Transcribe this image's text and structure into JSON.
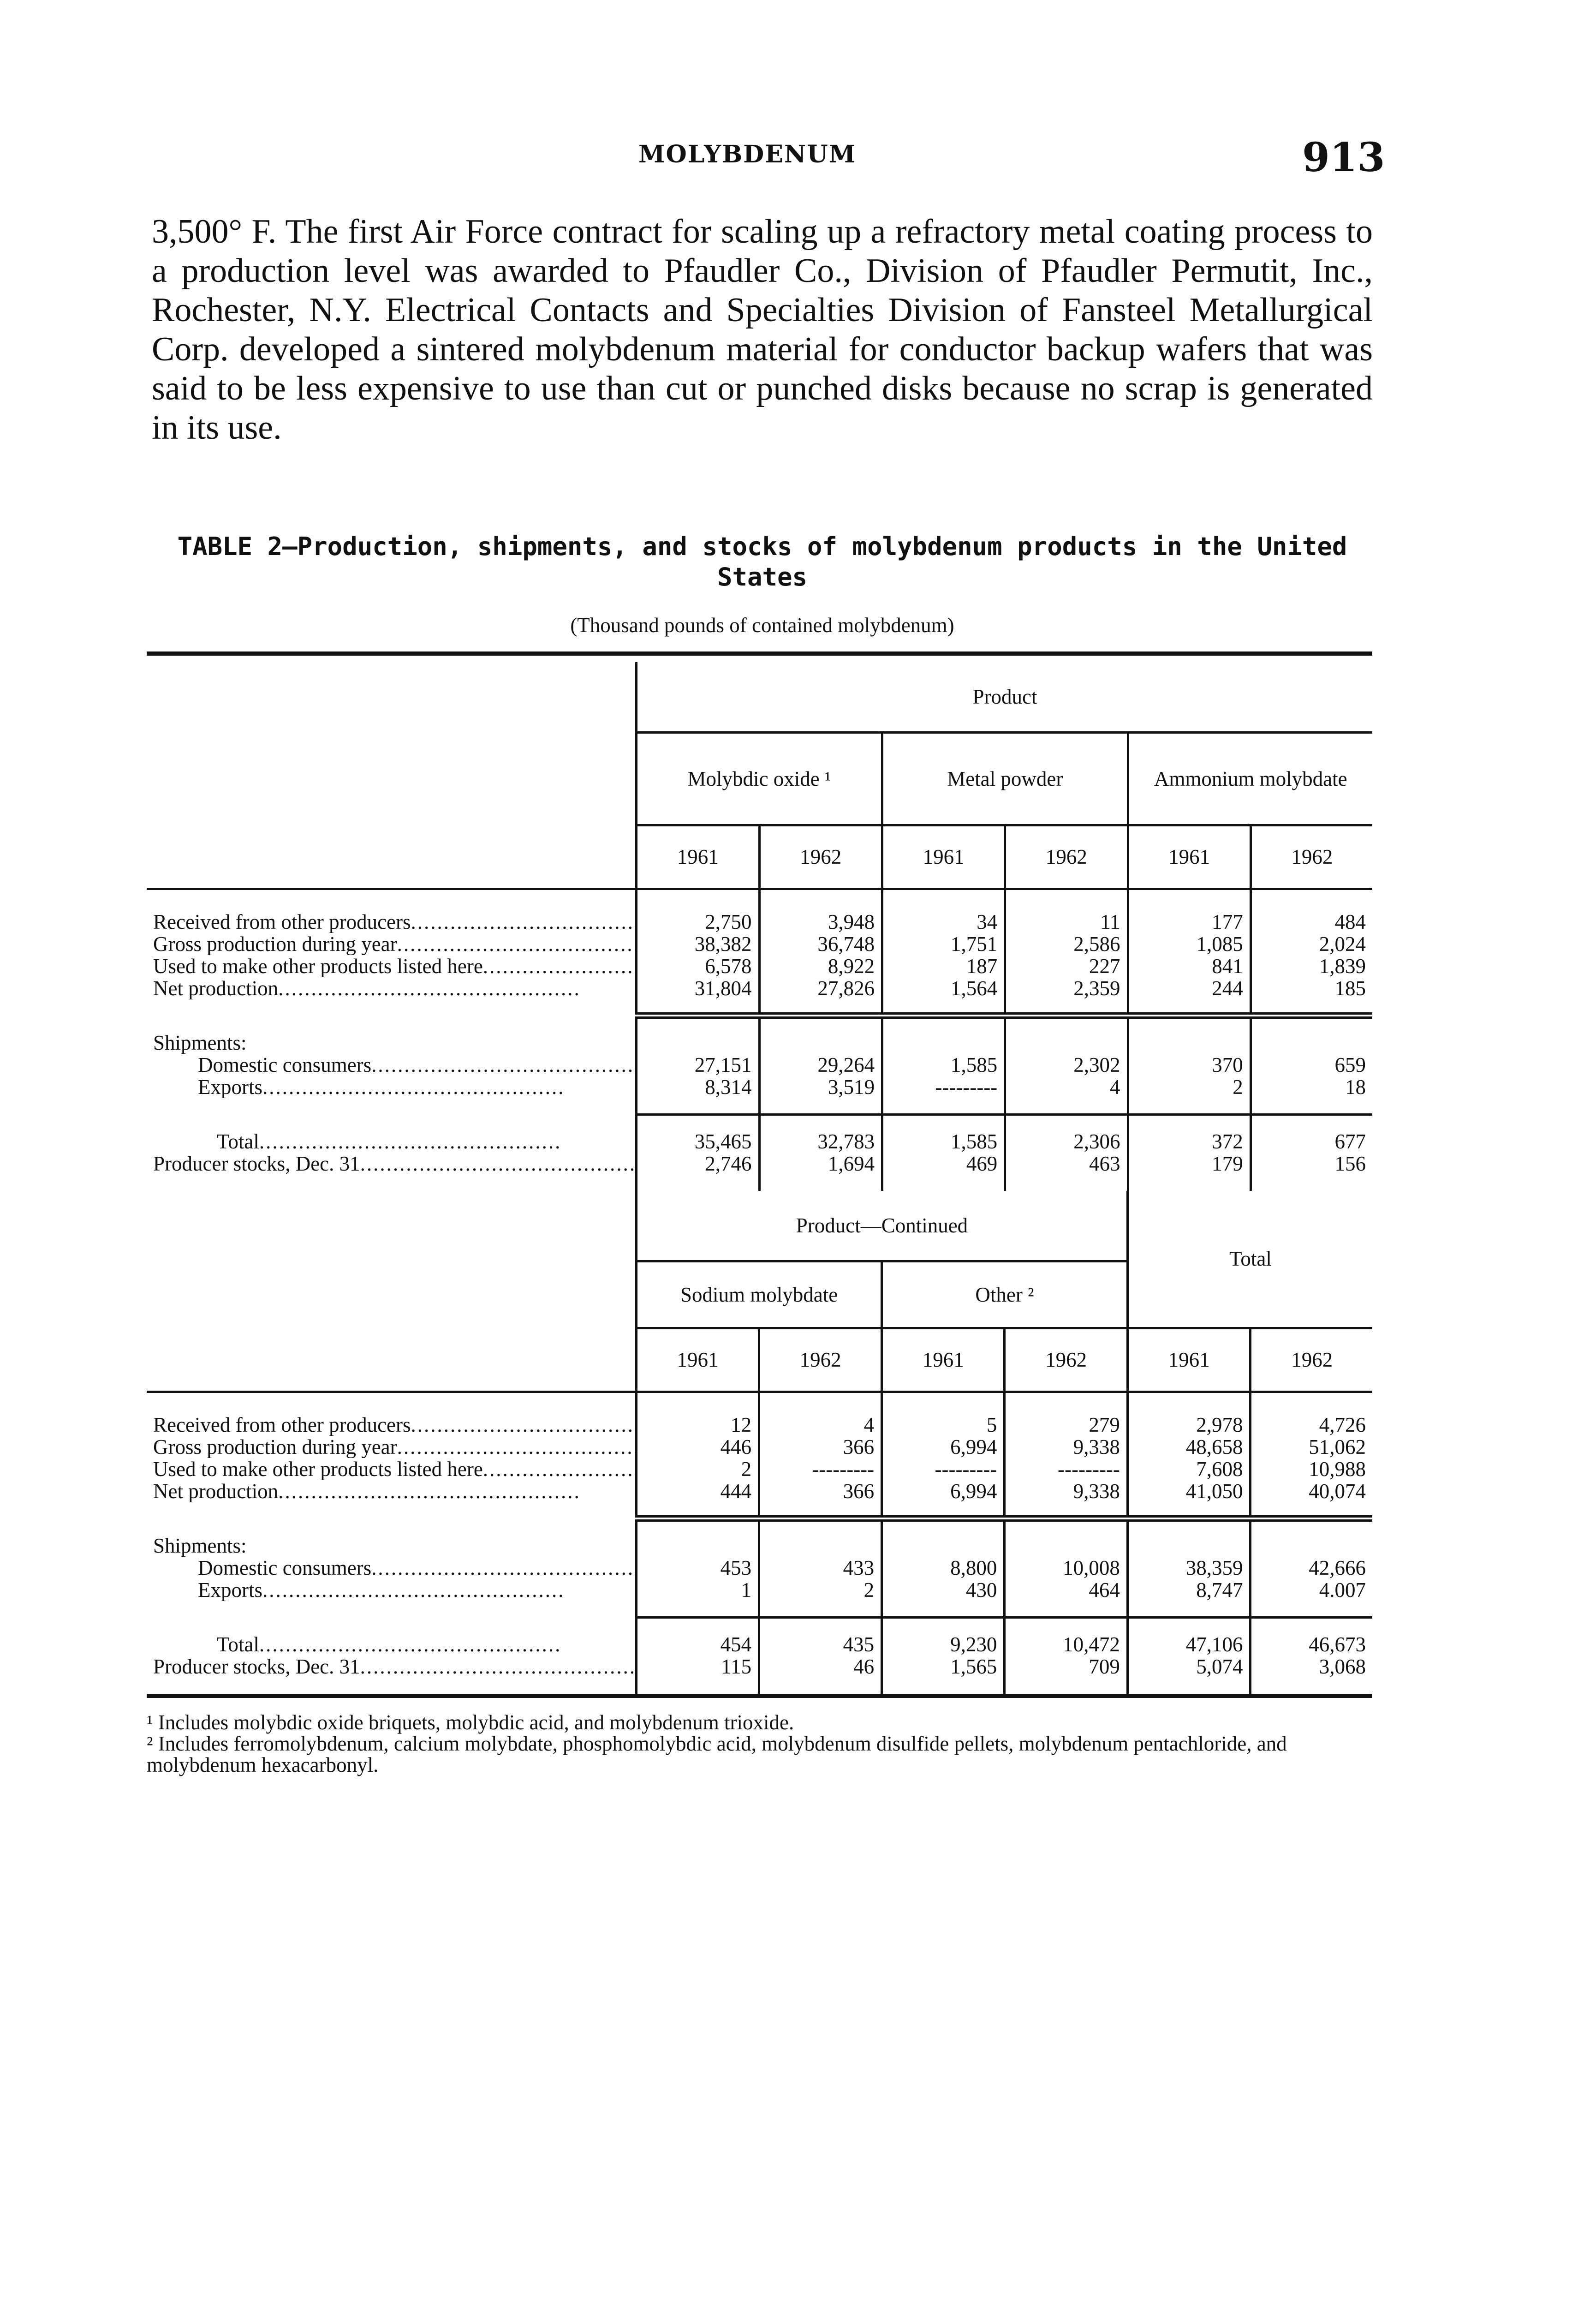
{
  "header": {
    "running_head": "MOLYBDENUM",
    "page_number": "913"
  },
  "paragraph": "3,500° F. The first Air Force contract for scaling up a refractory metal coating process to a production level was awarded to Pfaudler Co., Division of Pfaudler Permutit, Inc., Rochester, N.Y. Electrical Contacts and Specialties Division of Fansteel Metallurgical Corp. developed a sintered molybdenum material for conductor backup wafers that was said to be less expensive to use than cut or punched disks because no scrap is generated in its use.",
  "table": {
    "title": "TABLE 2—Production, shipments, and stocks of molybdenum products in the United States",
    "subtitle": "(Thousand pounds of contained molybdenum)",
    "rows": [
      "Received from other producers",
      "Gross production during year",
      "Used to make other products listed here",
      "Net production",
      "Shipments:",
      "Domestic consumers",
      "Exports",
      "Total",
      "Producer stocks, Dec. 31"
    ],
    "part1": {
      "group": "Product",
      "products": [
        "Molybdic oxide ¹",
        "Metal powder",
        "Ammonium molybdate"
      ],
      "years": [
        "1961",
        "1962",
        "1961",
        "1962",
        "1961",
        "1962"
      ],
      "values": [
        [
          "2,750",
          "3,948",
          "34",
          "11",
          "177",
          "484"
        ],
        [
          "38,382",
          "36,748",
          "1,751",
          "2,586",
          "1,085",
          "2,024"
        ],
        [
          "6,578",
          "8,922",
          "187",
          "227",
          "841",
          "1,839"
        ],
        [
          "31,804",
          "27,826",
          "1,564",
          "2,359",
          "244",
          "185"
        ],
        [
          "",
          "",
          "",
          "",
          "",
          ""
        ],
        [
          "27,151",
          "29,264",
          "1,585",
          "2,302",
          "370",
          "659"
        ],
        [
          "8,314",
          "3,519",
          "---------",
          "4",
          "2",
          "18"
        ],
        [
          "35,465",
          "32,783",
          "1,585",
          "2,306",
          "372",
          "677"
        ],
        [
          "2,746",
          "1,694",
          "469",
          "463",
          "179",
          "156"
        ]
      ]
    },
    "part2": {
      "group": "Product—Continued",
      "products": [
        "Sodium molybdate",
        "Other ²"
      ],
      "total_label": "Total",
      "years": [
        "1961",
        "1962",
        "1961",
        "1962",
        "1961",
        "1962"
      ],
      "values": [
        [
          "12",
          "4",
          "5",
          "279",
          "2,978",
          "4,726"
        ],
        [
          "446",
          "366",
          "6,994",
          "9,338",
          "48,658",
          "51,062"
        ],
        [
          "2",
          "---------",
          "---------",
          "---------",
          "7,608",
          "10,988"
        ],
        [
          "444",
          "366",
          "6,994",
          "9,338",
          "41,050",
          "40,074"
        ],
        [
          "",
          "",
          "",
          "",
          "",
          ""
        ],
        [
          "453",
          "433",
          "8,800",
          "10,008",
          "38,359",
          "42,666"
        ],
        [
          "1",
          "2",
          "430",
          "464",
          "8,747",
          "4.007"
        ],
        [
          "454",
          "435",
          "9,230",
          "10,472",
          "47,106",
          "46,673"
        ],
        [
          "115",
          "46",
          "1,565",
          "709",
          "5,074",
          "3,068"
        ]
      ]
    }
  },
  "footnotes": [
    "¹ Includes molybdic oxide briquets, molybdic acid, and molybdenum trioxide.",
    "² Includes ferromolybdenum, calcium molybdate, phosphomolybdic acid, molybdenum disulfide pellets, molybdenum pentachloride, and molybdenum hexacarbonyl."
  ]
}
